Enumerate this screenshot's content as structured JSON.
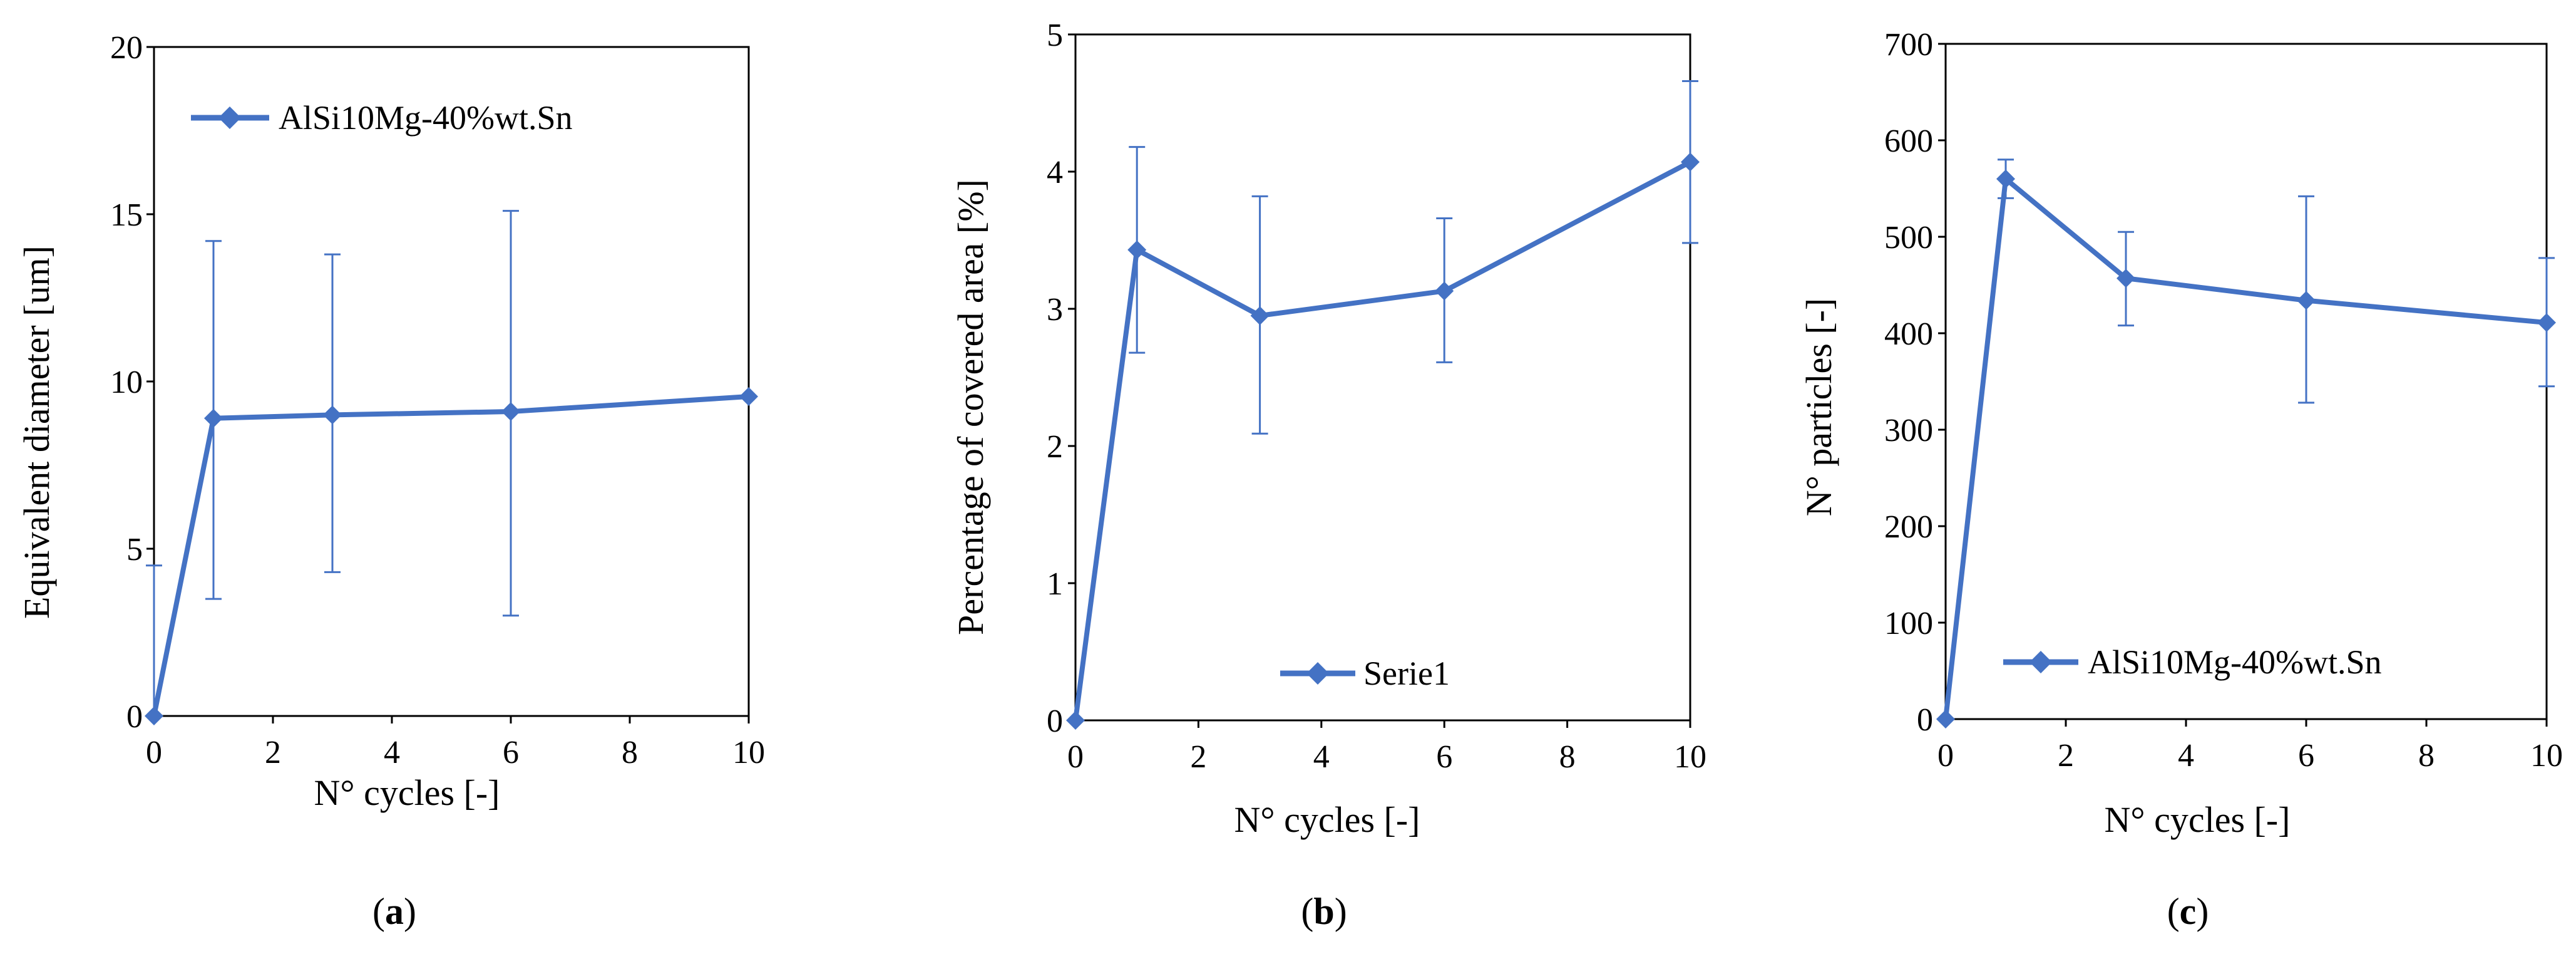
{
  "colors": {
    "series": "#4472C4",
    "axis": "#000000",
    "background": "#ffffff"
  },
  "chart_data": [
    {
      "type": "line",
      "panel_label": {
        "open": "(",
        "letter": "a",
        "close": ")"
      },
      "title": "",
      "xlabel": "N° cycles [-]",
      "ylabel": "Equivalent diameter [um]",
      "xlim": [
        0,
        10
      ],
      "ylim": [
        0,
        20
      ],
      "xticks": [
        0,
        2,
        4,
        6,
        8,
        10
      ],
      "yticks": [
        0,
        5,
        10,
        15,
        20
      ],
      "grid": false,
      "legend_position": "top-left",
      "series": [
        {
          "name": "AlSi10Mg-40%wt.Sn",
          "x": [
            0,
            1,
            3,
            6,
            10
          ],
          "values": [
            0,
            8.9,
            9.0,
            9.1,
            9.55
          ],
          "error_low": [
            null,
            3.5,
            4.3,
            3.0,
            null
          ],
          "error_high": [
            4.5,
            14.2,
            13.8,
            15.1,
            null
          ]
        }
      ]
    },
    {
      "type": "line",
      "panel_label": {
        "open": "(",
        "letter": "b",
        "close": ")"
      },
      "title": "",
      "xlabel": "N° cycles [-]",
      "ylabel": "Percentage of covered area [%]",
      "xlim": [
        0,
        10
      ],
      "ylim": [
        0,
        5
      ],
      "xticks": [
        0,
        2,
        4,
        6,
        8,
        10
      ],
      "yticks": [
        0,
        1,
        2,
        3,
        4,
        5
      ],
      "grid": false,
      "legend_position": "bottom-center",
      "series": [
        {
          "name": "Serie1",
          "x": [
            0,
            1,
            3,
            6,
            10
          ],
          "values": [
            0,
            3.43,
            2.95,
            3.13,
            4.07
          ],
          "error_low": [
            null,
            2.68,
            2.09,
            2.61,
            3.48
          ],
          "error_high": [
            null,
            4.18,
            3.82,
            3.66,
            4.66
          ]
        }
      ]
    },
    {
      "type": "line",
      "panel_label": {
        "open": "(",
        "letter": "c",
        "close": ")"
      },
      "title": "",
      "xlabel": "N° cycles [-]",
      "ylabel": "N° particles [-]",
      "xlim": [
        0,
        10
      ],
      "ylim": [
        0,
        700
      ],
      "xticks": [
        0,
        2,
        4,
        6,
        8,
        10
      ],
      "yticks": [
        0,
        100,
        200,
        300,
        400,
        500,
        600,
        700
      ],
      "grid": false,
      "legend_position": "bottom-right",
      "series": [
        {
          "name": "AlSi10Mg-40%wt.Sn",
          "x": [
            0,
            1,
            3,
            6,
            10
          ],
          "values": [
            0,
            560,
            457,
            434,
            411
          ],
          "error_low": [
            null,
            540,
            408,
            328,
            345
          ],
          "error_high": [
            null,
            580,
            505,
            542,
            478
          ]
        }
      ]
    }
  ]
}
